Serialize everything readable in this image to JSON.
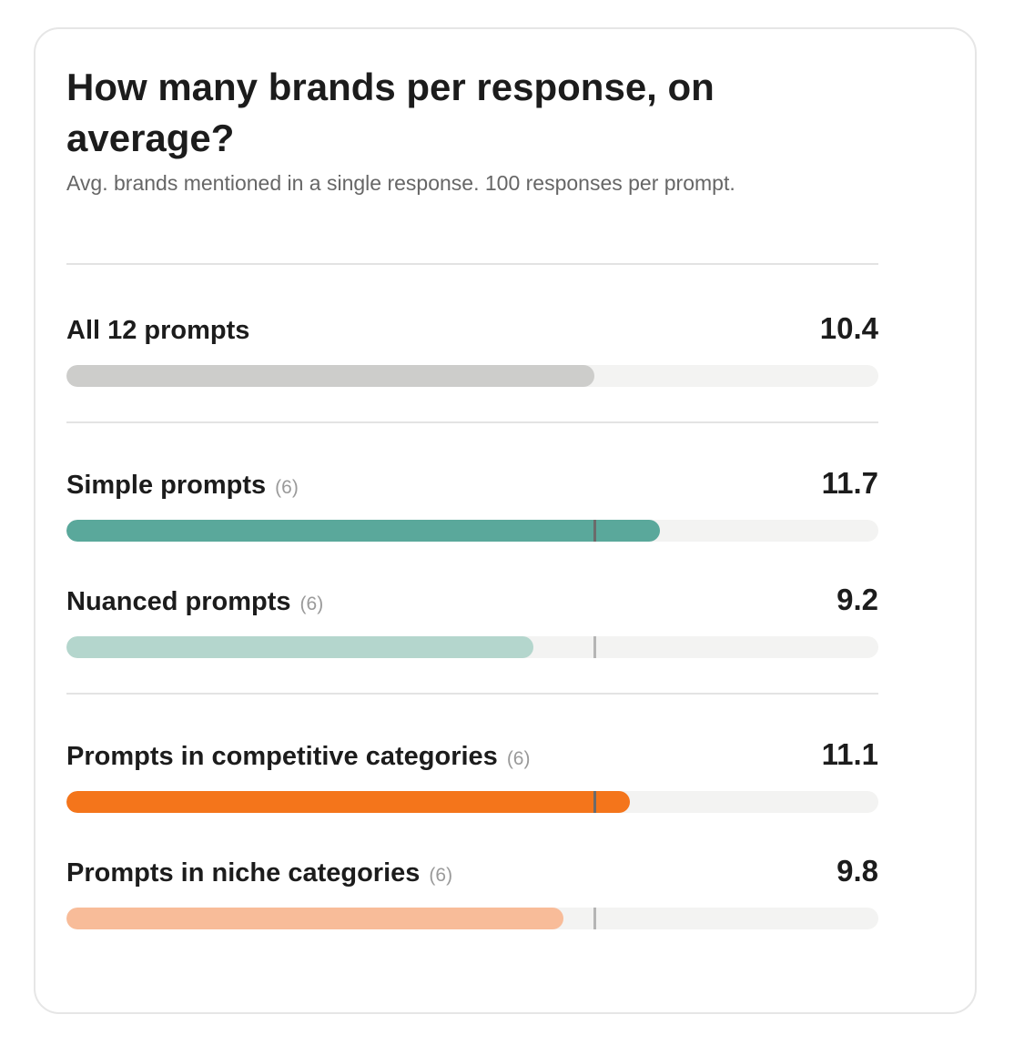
{
  "header": {
    "title": "How many brands per response, on average?",
    "subtitle": "Avg. brands mentioned in a single response. 100 responses per prompt."
  },
  "colors": {
    "all": "#cdcdcb",
    "simple": "#5aa89b",
    "nuanced": "#b4d6cd",
    "competitive": "#f4751b",
    "niche": "#f8bc99",
    "track": "#f3f3f2",
    "marker_dark": "#6b6b6b",
    "marker_light": "#b5b5b5"
  },
  "chart_data": {
    "type": "bar",
    "orientation": "horizontal",
    "title": "How many brands per response, on average?",
    "subtitle": "Avg. brands mentioned in a single response. 100 responses per prompt.",
    "xlim": [
      0,
      16
    ],
    "reference_value": 10.4,
    "groups": [
      {
        "rows": [
          {
            "label": "All 12 prompts",
            "count": "",
            "value": 10.4,
            "value_text": "10.4",
            "color_key": "all",
            "show_marker": false
          }
        ]
      },
      {
        "rows": [
          {
            "label": "Simple prompts",
            "count": "(6)",
            "value": 11.7,
            "value_text": "11.7",
            "color_key": "simple",
            "show_marker": true
          },
          {
            "label": "Nuanced prompts",
            "count": "(6)",
            "value": 9.2,
            "value_text": "9.2",
            "color_key": "nuanced",
            "show_marker": true
          }
        ]
      },
      {
        "rows": [
          {
            "label": "Prompts in competitive categories",
            "count": "(6)",
            "value": 11.1,
            "value_text": "11.1",
            "color_key": "competitive",
            "show_marker": true
          },
          {
            "label": "Prompts in niche categories",
            "count": "(6)",
            "value": 9.8,
            "value_text": "9.8",
            "color_key": "niche",
            "show_marker": true
          }
        ]
      }
    ]
  }
}
